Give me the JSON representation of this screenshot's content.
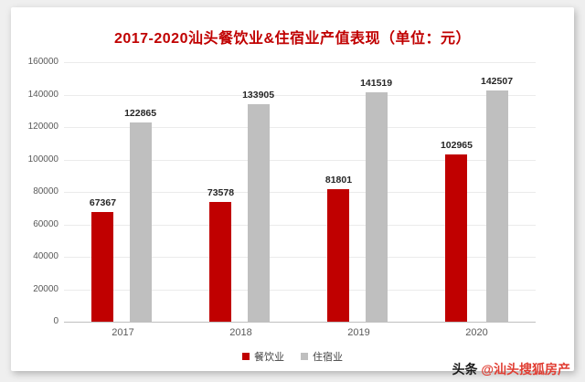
{
  "title": "2017-2020汕头餐饮业&住宿业产值表现（单位：元）",
  "title_color": "#c00000",
  "watermark": {
    "prefix": "头条",
    "handle": "@汕头搜狐房产"
  },
  "chart_data": {
    "type": "bar",
    "title": "2017-2020汕头餐饮业&住宿业产值表现（单位：元）",
    "categories": [
      "2017",
      "2018",
      "2019",
      "2020"
    ],
    "series": [
      {
        "name": "餐饮业",
        "color": "#c00000",
        "values": [
          67367,
          73578,
          81801,
          102965
        ]
      },
      {
        "name": "住宿业",
        "color": "#bfbfbf",
        "values": [
          122865,
          133905,
          141519,
          142507
        ]
      }
    ],
    "xlabel": "",
    "ylabel": "",
    "ylim": [
      0,
      160000
    ],
    "ytick_step": 20000,
    "grid": true,
    "legend_position": "bottom"
  }
}
